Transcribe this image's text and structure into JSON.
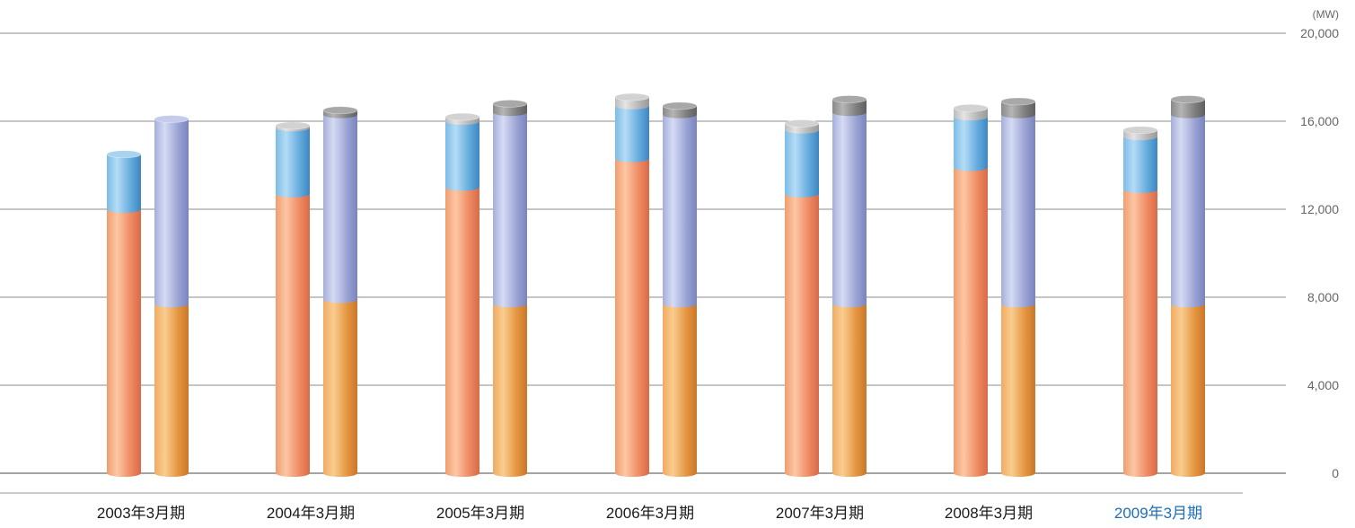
{
  "chart_data": {
    "type": "bar",
    "unit_label": "(MW)",
    "ylim": [
      0,
      20000
    ],
    "yticks": [
      "0",
      "4,000",
      "8,000",
      "12,000",
      "16,000",
      "20,000"
    ],
    "ytick_values": [
      0,
      4000,
      8000,
      12000,
      16000,
      20000
    ],
    "grid": true,
    "categories": [
      "2003年3月期",
      "2004年3月期",
      "2005年3月期",
      "2006年3月期",
      "2007年3月期",
      "2008年3月期",
      "2009年3月期"
    ],
    "highlight_category": "2009年3月期",
    "highlight_color": "#1c6fb8",
    "stacks": [
      {
        "series": [
          {
            "values": [
              12000,
              12700,
              13000,
              14300,
              12700,
              13900,
              12900
            ],
            "color": "#ee8a68"
          },
          {
            "values": [
              2500,
              3000,
              3000,
              2400,
              2900,
              2300,
              2400
            ],
            "color": "#6fb6e3"
          },
          {
            "values": [
              0,
              100,
              200,
              400,
              300,
              400,
              300
            ],
            "color": "#bdbdbd"
          }
        ]
      },
      {
        "series": [
          {
            "values": [
              7700,
              7900,
              7700,
              7700,
              7700,
              7700,
              7700
            ],
            "color": "#eda352"
          },
          {
            "values": [
              8400,
              8400,
              8700,
              8600,
              8700,
              8600,
              8600
            ],
            "color": "#a9b1dc"
          },
          {
            "values": [
              0,
              200,
              400,
              400,
              600,
              600,
              700
            ],
            "color": "#8a8a8a"
          }
        ]
      }
    ]
  }
}
